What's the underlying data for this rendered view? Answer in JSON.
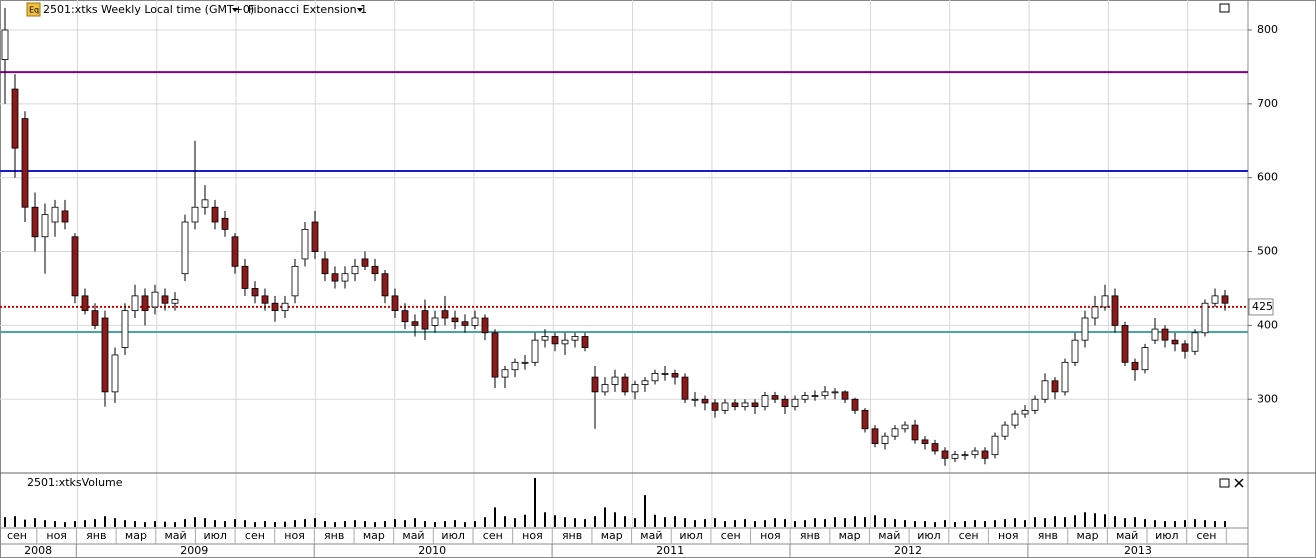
{
  "chart_data": {
    "type": "candlestick",
    "title": "2501:xtks Weekly Local time (GMT+0)",
    "indicator": "Fibonacci Extension 1",
    "volume_title": "2501:xtksVolume",
    "ylim": [
      201.5,
      840.6
    ],
    "yticks": [
      300,
      400,
      500,
      600,
      700,
      800
    ],
    "volume_ylim": [
      0,
      100
    ],
    "up_color": "#ffffff",
    "down_color": "#8b1a1a",
    "levels": [
      {
        "value": 743,
        "color": "#800080"
      },
      {
        "value": 609,
        "color": "#1a1acc"
      },
      {
        "value": 425,
        "color": "#cc0000",
        "label": "425"
      },
      {
        "value": 391,
        "color": "#4aa6a0"
      }
    ],
    "months": [
      "сен",
      "ноя",
      "янв",
      "мар",
      "май",
      "июл",
      "сен",
      "ноя",
      "янв",
      "мар",
      "май",
      "июл",
      "сен",
      "ноя",
      "янв",
      "мар",
      "май",
      "июл",
      "сен",
      "ноя",
      "янв",
      "мар",
      "май",
      "июл",
      "сен",
      "ноя",
      "янв",
      "мар",
      "май",
      "июл",
      "сен"
    ],
    "years": [
      "2008",
      "2009",
      "2010",
      "2011",
      "2012",
      "2013"
    ],
    "ohlc": [
      [
        760,
        830,
        700,
        800
      ],
      [
        720,
        740,
        600,
        640
      ],
      [
        680,
        690,
        540,
        560
      ],
      [
        560,
        580,
        500,
        520
      ],
      [
        520,
        565,
        470,
        550
      ],
      [
        540,
        570,
        520,
        560
      ],
      [
        555,
        570,
        530,
        540
      ],
      [
        520,
        525,
        430,
        440
      ],
      [
        440,
        450,
        415,
        420
      ],
      [
        420,
        430,
        395,
        400
      ],
      [
        410,
        420,
        290,
        310
      ],
      [
        310,
        370,
        295,
        360
      ],
      [
        370,
        430,
        360,
        420
      ],
      [
        420,
        455,
        410,
        440
      ],
      [
        440,
        450,
        400,
        420
      ],
      [
        425,
        455,
        415,
        445
      ],
      [
        440,
        450,
        420,
        430
      ],
      [
        430,
        445,
        420,
        435
      ],
      [
        470,
        550,
        460,
        540
      ],
      [
        540,
        650,
        530,
        560
      ],
      [
        560,
        590,
        550,
        570
      ],
      [
        560,
        570,
        530,
        540
      ],
      [
        545,
        555,
        520,
        530
      ],
      [
        520,
        525,
        470,
        480
      ],
      [
        480,
        490,
        440,
        450
      ],
      [
        450,
        460,
        430,
        440
      ],
      [
        440,
        450,
        420,
        430
      ],
      [
        430,
        440,
        405,
        420
      ],
      [
        420,
        440,
        410,
        430
      ],
      [
        440,
        490,
        430,
        480
      ],
      [
        490,
        540,
        480,
        530
      ],
      [
        540,
        555,
        490,
        500
      ],
      [
        490,
        500,
        460,
        470
      ],
      [
        470,
        480,
        450,
        460
      ],
      [
        460,
        480,
        450,
        470
      ],
      [
        470,
        490,
        460,
        480
      ],
      [
        490,
        500,
        475,
        480
      ],
      [
        480,
        490,
        460,
        470
      ],
      [
        470,
        475,
        430,
        440
      ],
      [
        440,
        450,
        410,
        420
      ],
      [
        420,
        430,
        395,
        405
      ],
      [
        405,
        415,
        385,
        400
      ],
      [
        420,
        435,
        380,
        395
      ],
      [
        400,
        420,
        390,
        410
      ],
      [
        420,
        440,
        400,
        410
      ],
      [
        410,
        420,
        395,
        405
      ],
      [
        405,
        415,
        390,
        400
      ],
      [
        400,
        420,
        395,
        410
      ],
      [
        410,
        415,
        380,
        390
      ],
      [
        390,
        395,
        315,
        330
      ],
      [
        330,
        345,
        315,
        340
      ],
      [
        340,
        355,
        330,
        350
      ],
      [
        350,
        360,
        340,
        350
      ],
      [
        350,
        390,
        345,
        380
      ],
      [
        380,
        395,
        370,
        385
      ],
      [
        385,
        390,
        365,
        375
      ],
      [
        375,
        390,
        360,
        380
      ],
      [
        380,
        390,
        370,
        385
      ],
      [
        385,
        390,
        365,
        370
      ],
      [
        330,
        345,
        260,
        310
      ],
      [
        310,
        330,
        305,
        320
      ],
      [
        320,
        340,
        310,
        330
      ],
      [
        330,
        335,
        305,
        310
      ],
      [
        310,
        325,
        300,
        320
      ],
      [
        320,
        330,
        310,
        325
      ],
      [
        325,
        340,
        320,
        335
      ],
      [
        335,
        345,
        325,
        335
      ],
      [
        335,
        340,
        320,
        330
      ],
      [
        330,
        335,
        295,
        300
      ],
      [
        300,
        310,
        290,
        300
      ],
      [
        300,
        305,
        285,
        295
      ],
      [
        295,
        300,
        275,
        285
      ],
      [
        285,
        300,
        280,
        295
      ],
      [
        295,
        300,
        285,
        290
      ],
      [
        290,
        300,
        285,
        295
      ],
      [
        295,
        300,
        280,
        290
      ],
      [
        290,
        310,
        285,
        305
      ],
      [
        305,
        310,
        295,
        300
      ],
      [
        300,
        305,
        280,
        290
      ],
      [
        290,
        305,
        285,
        300
      ],
      [
        300,
        310,
        295,
        305
      ],
      [
        305,
        312,
        298,
        305
      ],
      [
        305,
        318,
        300,
        310
      ],
      [
        310,
        315,
        300,
        310
      ],
      [
        310,
        312,
        295,
        300
      ],
      [
        300,
        302,
        280,
        285
      ],
      [
        285,
        288,
        255,
        260
      ],
      [
        260,
        265,
        235,
        240
      ],
      [
        240,
        255,
        232,
        250
      ],
      [
        250,
        265,
        245,
        260
      ],
      [
        260,
        270,
        255,
        265
      ],
      [
        265,
        272,
        240,
        245
      ],
      [
        245,
        250,
        232,
        240
      ],
      [
        240,
        245,
        225,
        230
      ],
      [
        230,
        235,
        210,
        220
      ],
      [
        220,
        230,
        215,
        225
      ],
      [
        225,
        230,
        218,
        225
      ],
      [
        225,
        235,
        220,
        230
      ],
      [
        230,
        235,
        212,
        220
      ],
      [
        225,
        255,
        220,
        250
      ],
      [
        250,
        270,
        245,
        265
      ],
      [
        265,
        285,
        260,
        280
      ],
      [
        280,
        292,
        275,
        285
      ],
      [
        285,
        305,
        280,
        300
      ],
      [
        300,
        335,
        295,
        325
      ],
      [
        325,
        330,
        300,
        310
      ],
      [
        310,
        355,
        305,
        350
      ],
      [
        350,
        390,
        345,
        380
      ],
      [
        380,
        420,
        370,
        410
      ],
      [
        410,
        440,
        400,
        425
      ],
      [
        425,
        455,
        420,
        440
      ],
      [
        440,
        450,
        390,
        400
      ],
      [
        400,
        405,
        345,
        350
      ],
      [
        350,
        355,
        325,
        340
      ],
      [
        340,
        375,
        335,
        370
      ],
      [
        380,
        410,
        375,
        395
      ],
      [
        395,
        400,
        370,
        380
      ],
      [
        380,
        390,
        365,
        375
      ],
      [
        375,
        380,
        355,
        365
      ],
      [
        365,
        395,
        360,
        390
      ],
      [
        390,
        435,
        385,
        430
      ],
      [
        430,
        450,
        425,
        440
      ],
      [
        440,
        448,
        420,
        430
      ]
    ],
    "volume": [
      20,
      22,
      15,
      18,
      14,
      12,
      10,
      12,
      14,
      16,
      22,
      18,
      14,
      12,
      10,
      12,
      11,
      10,
      16,
      20,
      18,
      14,
      12,
      16,
      14,
      10,
      12,
      10,
      11,
      14,
      16,
      18,
      12,
      10,
      12,
      14,
      12,
      10,
      12,
      16,
      14,
      18,
      12,
      10,
      12,
      14,
      10,
      12,
      20,
      40,
      22,
      18,
      25,
      100,
      30,
      24,
      20,
      18,
      16,
      22,
      40,
      30,
      22,
      18,
      65,
      25,
      20,
      22,
      18,
      14,
      16,
      18,
      12,
      14,
      16,
      12,
      14,
      18,
      16,
      12,
      14,
      18,
      16,
      20,
      18,
      22,
      20,
      24,
      18,
      16,
      14,
      12,
      12,
      10,
      14,
      10,
      12,
      14,
      12,
      14,
      16,
      18,
      14,
      20,
      18,
      22,
      20,
      24,
      30,
      28,
      26,
      22,
      18,
      20,
      16,
      14,
      12,
      12,
      14,
      16,
      14,
      12,
      12
    ]
  }
}
